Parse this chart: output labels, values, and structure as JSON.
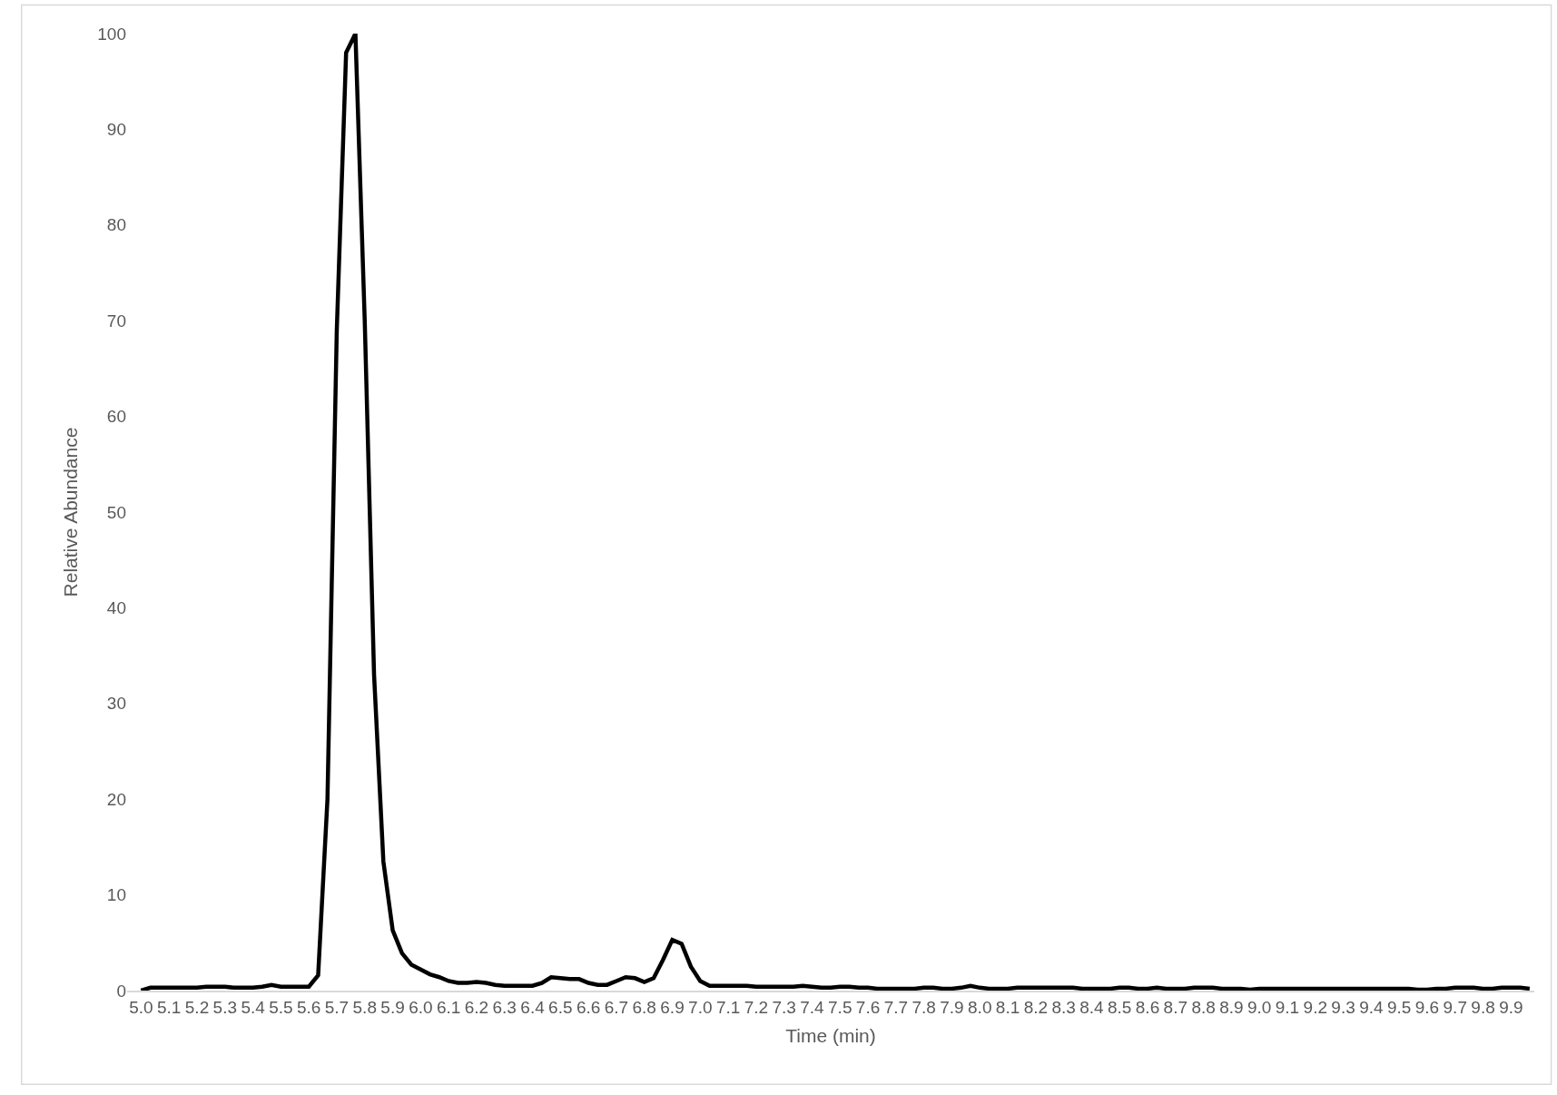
{
  "chart_data": {
    "type": "line",
    "xlabel": "Time (min)",
    "ylabel": "Relative Abundance",
    "categories": [
      "5.0",
      null,
      null,
      "5.1",
      null,
      null,
      "5.2",
      null,
      null,
      "5.3",
      null,
      null,
      "5.4",
      null,
      null,
      "5.5",
      null,
      null,
      "5.6",
      null,
      null,
      "5.7",
      null,
      null,
      "5.8",
      null,
      null,
      "5.9",
      null,
      null,
      "6.0",
      null,
      null,
      "6.1",
      null,
      null,
      "6.2",
      null,
      null,
      "6.3",
      null,
      null,
      "6.4",
      null,
      null,
      "6.5",
      null,
      null,
      "6.6",
      null,
      null,
      "6.7",
      null,
      null,
      "6.8",
      null,
      null,
      "6.9",
      null,
      null,
      "7.0",
      null,
      null,
      "7.1",
      null,
      null,
      "7.2",
      null,
      null,
      "7.3",
      null,
      null,
      "7.4",
      null,
      null,
      "7.5",
      null,
      null,
      "7.6",
      null,
      null,
      "7.7",
      null,
      null,
      "7.8",
      null,
      null,
      "7.9",
      null,
      null,
      "8.0",
      null,
      null,
      "8.1",
      null,
      null,
      "8.2",
      null,
      null,
      "8.3",
      null,
      null,
      "8.4",
      null,
      null,
      "8.5",
      null,
      null,
      "8.6",
      null,
      null,
      "8.7",
      null,
      null,
      "8.8",
      null,
      null,
      "8.9",
      null,
      null,
      "9.0",
      null,
      null,
      "9.1",
      null,
      null,
      "9.2",
      null,
      null,
      "9.3",
      null,
      null,
      "9.4",
      null,
      null,
      "9.5",
      null,
      null,
      "9.6",
      null,
      null,
      "9.7",
      null,
      null,
      "9.8",
      null,
      null,
      "9.9",
      null,
      null
    ],
    "series": [
      {
        "color": "#000000",
        "values": [
          0,
          0.3,
          0.3,
          0.3,
          0.3,
          0.3,
          0.3,
          0.4,
          0.4,
          0.4,
          0.3,
          0.3,
          0.3,
          0.4,
          0.6,
          0.4,
          0.4,
          0.4,
          0.4,
          1.6,
          20,
          69,
          98,
          100,
          70,
          33,
          13.5,
          6.3,
          3.9,
          2.7,
          2.2,
          1.7,
          1.4,
          1.0,
          0.8,
          0.8,
          0.9,
          0.8,
          0.6,
          0.5,
          0.5,
          0.5,
          0.5,
          0.8,
          1.4,
          1.3,
          1.2,
          1.2,
          0.8,
          0.6,
          0.6,
          1.0,
          1.4,
          1.3,
          0.9,
          1.3,
          3.2,
          5.3,
          4.9,
          2.5,
          1.0,
          0.5,
          0.5,
          0.5,
          0.5,
          0.5,
          0.4,
          0.4,
          0.4,
          0.4,
          0.4,
          0.5,
          0.4,
          0.3,
          0.3,
          0.4,
          0.4,
          0.3,
          0.3,
          0.2,
          0.2,
          0.2,
          0.2,
          0.2,
          0.3,
          0.3,
          0.2,
          0.2,
          0.3,
          0.5,
          0.3,
          0.2,
          0.2,
          0.2,
          0.3,
          0.3,
          0.3,
          0.3,
          0.3,
          0.3,
          0.3,
          0.2,
          0.2,
          0.2,
          0.2,
          0.3,
          0.3,
          0.2,
          0.2,
          0.3,
          0.2,
          0.2,
          0.2,
          0.3,
          0.3,
          0.3,
          0.2,
          0.2,
          0.2,
          0.1,
          0.2,
          0.2,
          0.2,
          0.2,
          0.2,
          0.2,
          0.2,
          0.2,
          0.2,
          0.2,
          0.2,
          0.2,
          0.2,
          0.2,
          0.2,
          0.2,
          0.2,
          0.1,
          0.1,
          0.2,
          0.2,
          0.3,
          0.3,
          0.3,
          0.2,
          0.2,
          0.3,
          0.3,
          0.3,
          0.2
        ]
      }
    ],
    "ylim": [
      0,
      100
    ],
    "yticks": [
      0,
      10,
      20,
      30,
      40,
      50,
      60,
      70,
      80,
      90,
      100
    ],
    "marker": "none",
    "line_style": "solid"
  }
}
